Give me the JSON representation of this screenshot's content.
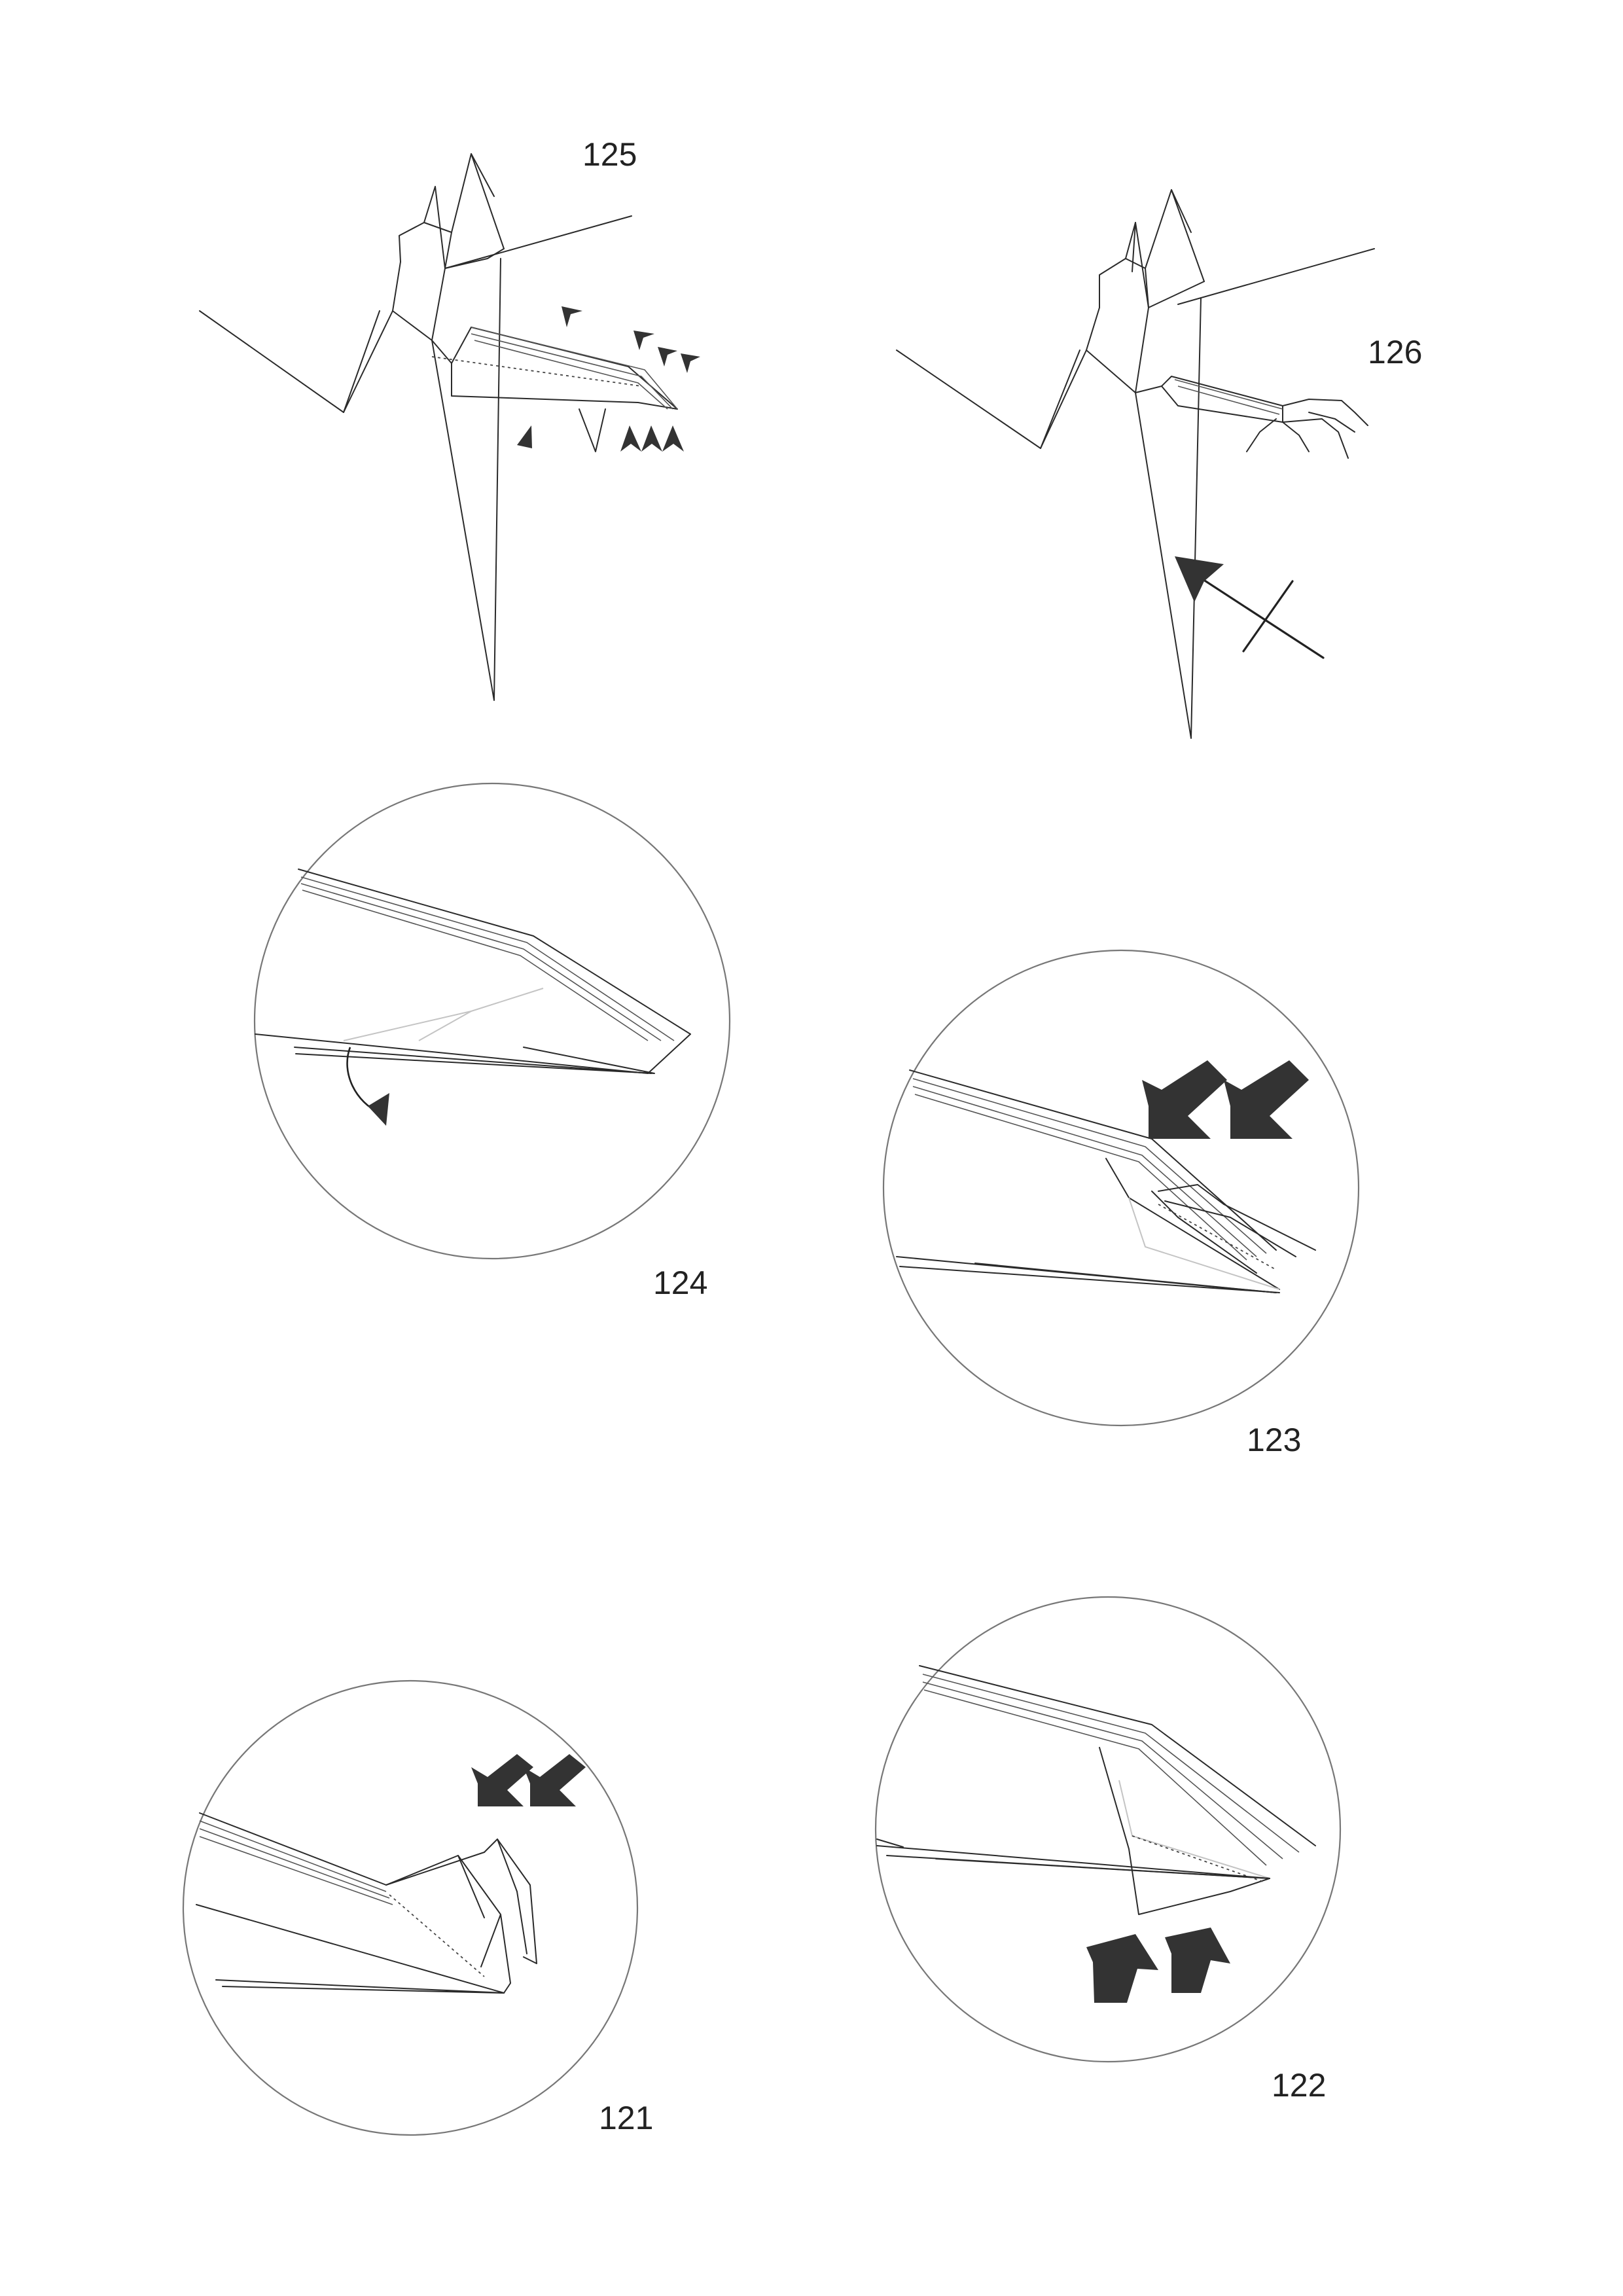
{
  "steps": [
    {
      "number": "125"
    },
    {
      "number": "126"
    },
    {
      "number": "124"
    },
    {
      "number": "123"
    },
    {
      "number": "121"
    },
    {
      "number": "122"
    }
  ],
  "colors": {
    "line": "#2a2a2a",
    "arrow": "#333333",
    "circle": "#777777"
  }
}
